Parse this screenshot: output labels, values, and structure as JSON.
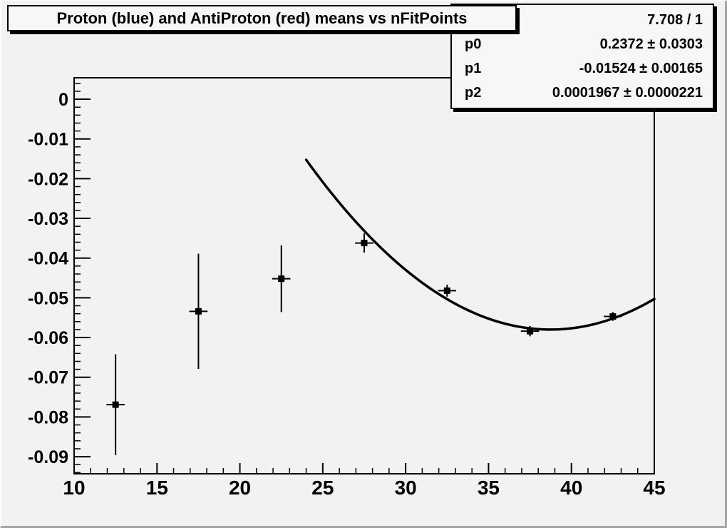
{
  "title_box": {
    "text": "Proton (blue) and AntiProton (red) means vs nFitPoints"
  },
  "stats_box": {
    "chi2": "7.708 / 1",
    "rows": [
      {
        "label": "p0",
        "value": "0.2372 ± 0.0303"
      },
      {
        "label": "p1",
        "value": "-0.01524 ± 0.00165"
      },
      {
        "label": "p2",
        "value": "0.0001967 ± 0.0000221"
      }
    ]
  },
  "chart_data": {
    "type": "scatter",
    "title": "Proton (blue) and AntiProton (red) means vs nFitPoints",
    "xlabel": "",
    "ylabel": "",
    "xlim": [
      10,
      45
    ],
    "ylim": [
      -0.0943,
      0.0054
    ],
    "grid": false,
    "x_ticks": {
      "major": [
        10,
        15,
        20,
        25,
        30,
        35,
        40,
        45
      ],
      "labels": [
        "10",
        "15",
        "20",
        "25",
        "30",
        "35",
        "40",
        "45"
      ],
      "minor_step": 1
    },
    "y_ticks": {
      "major": [
        0,
        -0.01,
        -0.02,
        -0.03,
        -0.04,
        -0.05,
        -0.06,
        -0.07,
        -0.08,
        -0.09
      ],
      "labels": [
        "0",
        "-0.01",
        "-0.02",
        "-0.03",
        "-0.04",
        "-0.05",
        "-0.06",
        "-0.07",
        "-0.08",
        "-0.09"
      ],
      "minor_step": 0.002
    },
    "series": [
      {
        "name": "proton-antiproton-means",
        "marker": "square",
        "color": "#000000",
        "points": [
          {
            "x": 12.5,
            "y": -0.0769,
            "yerr": 0.0127,
            "xerr": 0.55
          },
          {
            "x": 17.5,
            "y": -0.0534,
            "yerr": 0.0145,
            "xerr": 0.55
          },
          {
            "x": 22.5,
            "y": -0.0452,
            "yerr": 0.0084,
            "xerr": 0.55
          },
          {
            "x": 27.5,
            "y": -0.0362,
            "yerr": 0.0024,
            "xerr": 0.55
          },
          {
            "x": 32.5,
            "y": -0.0482,
            "yerr": 0.0015,
            "xerr": 0.55
          },
          {
            "x": 37.5,
            "y": -0.0584,
            "yerr": 0.0013,
            "xerr": 0.55
          },
          {
            "x": 42.5,
            "y": -0.0547,
            "yerr": 0.0011,
            "xerr": 0.55
          }
        ]
      }
    ],
    "fit": {
      "formula": "p0 + p1*x + p2*x^2",
      "params": {
        "p0": 0.2372,
        "p1": -0.01524,
        "p2": 0.0001967
      },
      "param_errors": {
        "p0": 0.0303,
        "p1": 0.00165,
        "p2": 2.21e-05
      },
      "chi2_ndf": "7.708 / 1",
      "x_range": [
        24,
        45
      ],
      "color": "#000000"
    },
    "colors": {
      "foreground": "#000000",
      "canvas_bg": "#f2f2f0",
      "box_bg": "#f7f7f5"
    }
  }
}
